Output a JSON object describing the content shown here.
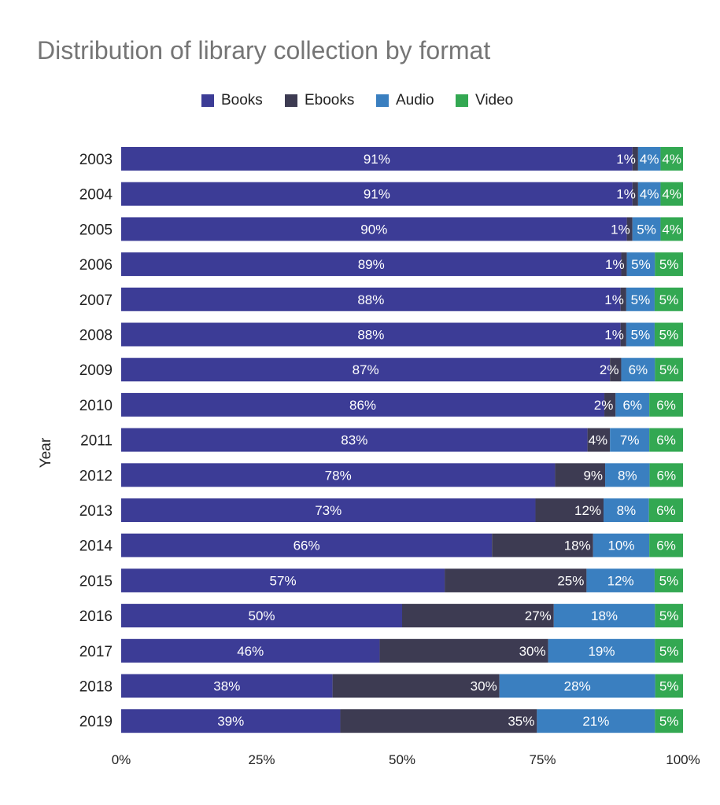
{
  "chart_data": {
    "type": "bar",
    "orientation": "horizontal",
    "stacked": "percent",
    "title": "Distribution of library collection by format",
    "ylabel": "Year",
    "xlabel": "",
    "categories": [
      "2003",
      "2004",
      "2005",
      "2006",
      "2007",
      "2008",
      "2009",
      "2010",
      "2011",
      "2012",
      "2013",
      "2014",
      "2015",
      "2016",
      "2017",
      "2018",
      "2019"
    ],
    "series": [
      {
        "name": "Books",
        "color": "#3c3c96",
        "label_color": "#ffffff",
        "values": [
          91,
          91,
          90,
          89,
          88,
          88,
          87,
          86,
          83,
          78,
          73,
          66,
          57,
          50,
          46,
          38,
          39
        ]
      },
      {
        "name": "Ebooks",
        "color": "#3d3b52",
        "label_color": "#ffffff",
        "values": [
          1,
          1,
          1,
          1,
          1,
          1,
          2,
          2,
          4,
          9,
          12,
          18,
          25,
          27,
          30,
          30,
          35
        ]
      },
      {
        "name": "Audio",
        "color": "#3a7fc0",
        "label_color": "#ffffff",
        "values": [
          4,
          4,
          5,
          5,
          5,
          5,
          6,
          6,
          7,
          8,
          8,
          10,
          12,
          18,
          19,
          28,
          21
        ]
      },
      {
        "name": "Video",
        "color": "#33a852",
        "label_color": "#ffffff",
        "values": [
          4,
          4,
          4,
          5,
          5,
          5,
          5,
          6,
          6,
          6,
          6,
          6,
          5,
          5,
          5,
          5,
          5
        ]
      }
    ],
    "xlim": [
      0,
      100
    ],
    "xticks": [
      "0%",
      "25%",
      "50%",
      "75%",
      "100%"
    ],
    "legend_position": "top",
    "grid": false
  }
}
